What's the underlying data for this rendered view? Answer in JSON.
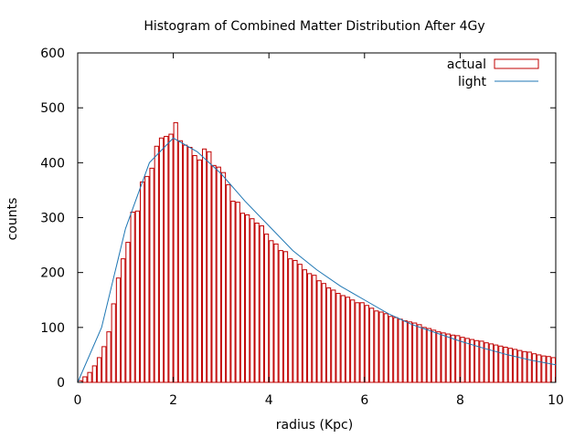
{
  "chart_data": {
    "type": "bar",
    "title": "Histogram of Combined Matter Distribution After 4Gy",
    "xlabel": "radius (Kpc)",
    "ylabel": "counts",
    "xlim": [
      0,
      10
    ],
    "ylim": [
      0,
      600
    ],
    "xticks": [
      "0",
      "2",
      "4",
      "6",
      "8",
      "10"
    ],
    "yticks": [
      "0",
      "100",
      "200",
      "300",
      "400",
      "500",
      "600"
    ],
    "legend_position": "top-right",
    "bin_width": 0.1,
    "series": [
      {
        "name": "actual",
        "kind": "histogram",
        "color": "#c00000",
        "values": [
          3,
          10,
          18,
          30,
          45,
          65,
          92,
          143,
          190,
          225,
          255,
          310,
          312,
          365,
          375,
          390,
          430,
          445,
          448,
          452,
          473,
          440,
          432,
          428,
          413,
          405,
          425,
          420,
          395,
          392,
          382,
          360,
          330,
          328,
          308,
          305,
          298,
          290,
          285,
          270,
          258,
          252,
          240,
          238,
          225,
          222,
          215,
          205,
          198,
          195,
          185,
          180,
          172,
          168,
          162,
          158,
          155,
          150,
          145,
          145,
          140,
          135,
          130,
          128,
          125,
          120,
          118,
          115,
          112,
          110,
          108,
          105,
          100,
          98,
          95,
          92,
          90,
          88,
          86,
          85,
          82,
          80,
          78,
          76,
          75,
          72,
          70,
          68,
          66,
          64,
          62,
          60,
          58,
          56,
          55,
          52,
          50,
          48,
          47,
          45
        ]
      },
      {
        "name": "light",
        "kind": "line",
        "color": "#1f77b4",
        "x": [
          0,
          0.5,
          1,
          1.5,
          2,
          2.5,
          3,
          3.5,
          4,
          4.5,
          5,
          5.5,
          6,
          6.5,
          7,
          7.5,
          8,
          8.5,
          9,
          9.5,
          10
        ],
        "values": [
          0,
          100,
          280,
          400,
          445,
          420,
          380,
          330,
          285,
          240,
          205,
          175,
          150,
          125,
          105,
          90,
          75,
          62,
          50,
          40,
          32
        ]
      }
    ]
  }
}
